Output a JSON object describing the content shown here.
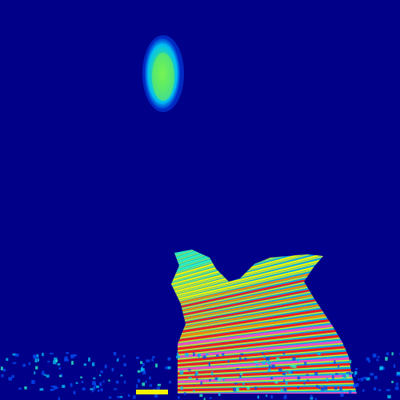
{
  "image": {
    "kind": "spectrogram",
    "colormap": "jet",
    "background_color": "#000090",
    "palette": [
      "#000090",
      "#0050ff",
      "#00c8ff",
      "#30ffc8",
      "#a0ff50",
      "#ffff00",
      "#ff8c00",
      "#ff1e1e",
      "#ff50c8"
    ],
    "features": [
      {
        "name": "upper-blob",
        "description_free": true
      },
      {
        "name": "harmonic-stack"
      },
      {
        "name": "baseline-noise"
      }
    ]
  }
}
